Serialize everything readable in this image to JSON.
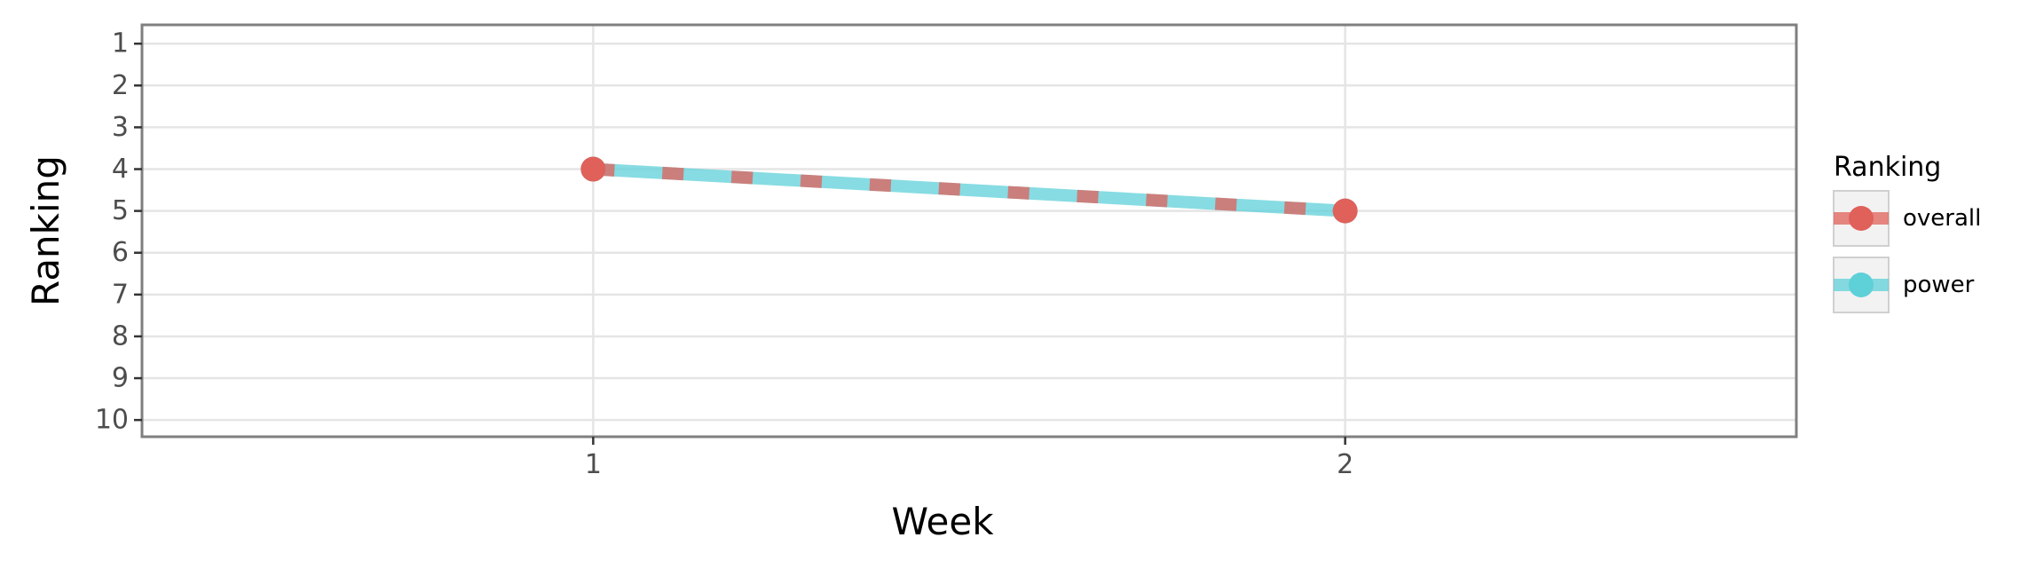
{
  "chart_data": {
    "type": "line",
    "xlabel": "Week",
    "ylabel": "Ranking",
    "x_ticks": [
      "1",
      "2"
    ],
    "y_ticks": [
      "1",
      "2",
      "3",
      "4",
      "5",
      "6",
      "7",
      "8",
      "9",
      "10"
    ],
    "xlim": [
      0.4,
      2.6
    ],
    "ylim": [
      10.4,
      0.55
    ],
    "y_reversed": true,
    "grid": true,
    "legend_title": "Ranking",
    "legend_position": "right",
    "series": [
      {
        "name": "overall",
        "color": "#E0605A",
        "x": [
          1,
          2
        ],
        "y": [
          4,
          5
        ],
        "linestyle": "dashed"
      },
      {
        "name": "power",
        "color": "#5ED0D8",
        "x": [
          1,
          2
        ],
        "y": [
          4,
          5
        ],
        "linestyle": "solid"
      }
    ]
  }
}
